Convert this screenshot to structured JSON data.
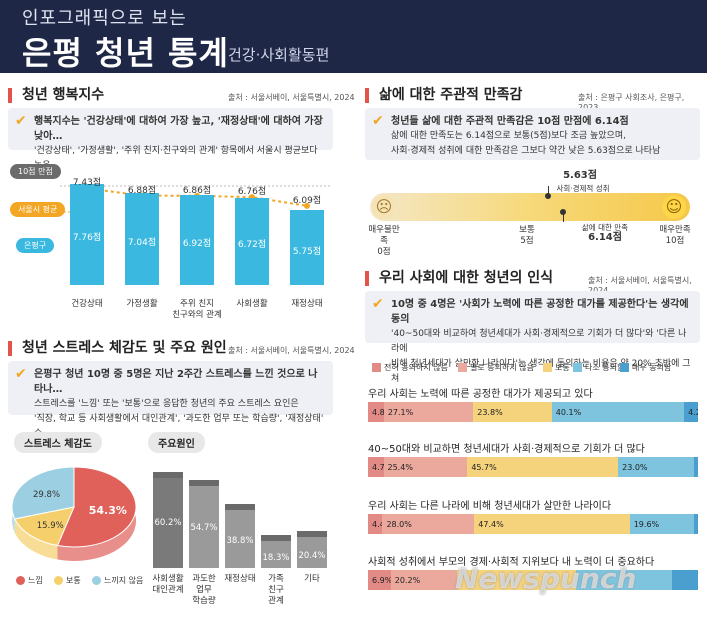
{
  "header": {
    "sup": "인포그래픽으로 보는",
    "main": "은평 청년 통계",
    "sub": "건강·사회활동편"
  },
  "happiness": {
    "title": "청년 행복지수",
    "source": "출처 : 서울서베이, 서울특별시, 2024",
    "note_bold": "행복지수는 '건강상태'에 대하여 가장 높고, '재정상태'에 대하여 가장 낮아…",
    "note_text": "'건강상태', '가정생활', '주위 친지·친구와의 관계' 항목에서 서울시 평균보다 높음",
    "scale_tag": "10점 만점",
    "avg_tag": "서울시 평균",
    "eunpyeong_tag": "은평구"
  },
  "satisfaction": {
    "title": "삶에 대한 주관적 만족감",
    "source": "출처 : 은평구 사회조사, 은평구, 2023",
    "note_bold": "청년들 삶에 대한 주관적 만족감은 10점 만점에 6.14점",
    "note_text1": "삶에 대한 만족도는 6.14점으로 보통(5점)보다 조금 높았으며,",
    "note_text2": "사회·경제적 성취에 대한 만족감은 그보다 약간 낮은 5.63점으로 나타남",
    "top_val": "5.63점",
    "top_lab": "사회·경제적 성취",
    "bottom_lab": "삶에 대한 만족",
    "bottom_val": "6.14점",
    "left_lab": "매우불만족",
    "left_val": "0점",
    "mid_lab": "보통",
    "mid_val": "5점",
    "right_lab": "매우만족",
    "right_val": "10점"
  },
  "stress": {
    "title": "청년 스트레스 체감도 및 주요 원인",
    "source": "출처 : 서울서베이, 서울특별시, 2024",
    "note_bold": "은평구 청년 10명 중 5명은 지난 2주간 스트레스를 느낀 것으로 나타나…",
    "note_text1": "스트레스를 '느낌' 또는 '보통'으로 응답한 청년의 주요 스트레스 요인은",
    "note_text2": "'직장, 학교 등 사회생활에서 대인관계', '과도한 업무 또는 학습량', '재정상태' 순",
    "pie_label": "스트레스 체감도",
    "cause_label": "주요원인",
    "pie_legend": [
      "느낌",
      "보통",
      "느끼지 않음"
    ]
  },
  "perception": {
    "title": "우리 사회에 대한 청년의 인식",
    "source": "출처 : 서울서베이, 서울특별시, 2024",
    "note_bold": "10명 중 4명은 '사회가 노력에 따른 공정한 대가를 제공한다'는 생각에 동의",
    "note_text1": "'40~50대와 비교하여 청년세대가 사회·경제적으로 기회가 더 많다'와 '다른 나라에",
    "note_text2": "비해 청년세대가 살만한 나라이다'는 생각에 동의하는 비율은 약 20% 초반에 그쳐",
    "legend": [
      "전혀 동의하지 않음",
      "별로 동의하지 않음",
      "보통",
      "다소 동의함",
      "매우 동의함"
    ]
  },
  "watermark": "Newspunch",
  "chart_data": [
    {
      "type": "bar",
      "title": "청년 행복지수",
      "categories": [
        "건강상태",
        "가정생활",
        "주위 친지·친구와의 관계",
        "사회생활",
        "재정상태"
      ],
      "category_labels": [
        [
          "건강상태"
        ],
        [
          "가정생활"
        ],
        [
          "주위 친지",
          "친구와의 관계"
        ],
        [
          "사회생활"
        ],
        [
          "재정상태"
        ]
      ],
      "series": [
        {
          "name": "은평구",
          "values": [
            7.76,
            7.04,
            6.92,
            6.72,
            5.75
          ],
          "labels": [
            "7.76점",
            "7.04점",
            "6.92점",
            "6.72점",
            "5.75점"
          ]
        },
        {
          "name": "서울시 평균",
          "values": [
            7.43,
            6.88,
            6.86,
            6.76,
            6.09
          ],
          "labels": [
            "7.43점",
            "6.88점",
            "6.86점",
            "6.76점",
            "6.09점"
          ]
        }
      ],
      "ylim": [
        0,
        10
      ],
      "colors": {
        "bar": "#3ab8e0",
        "avg": "#f2a623"
      }
    },
    {
      "type": "scale",
      "title": "삶에 대한 주관적 만족감",
      "range": [
        0,
        10
      ],
      "points": [
        {
          "name": "사회·경제적 성취",
          "value": 5.63
        },
        {
          "name": "삶에 대한 만족",
          "value": 6.14
        }
      ]
    },
    {
      "type": "pie",
      "title": "스트레스 체감도",
      "categories": [
        "느낌",
        "보통",
        "느끼지 않음"
      ],
      "values": [
        54.3,
        15.9,
        29.8
      ],
      "labels": [
        "54.3%",
        "15.9%",
        "29.8%"
      ],
      "colors": [
        "#e0605a",
        "#f5cf6b",
        "#9ccfe2"
      ]
    },
    {
      "type": "bar",
      "title": "주요원인",
      "categories": [
        "사회생활 대인관계",
        "과도한 업무 학습량",
        "재정상태",
        "가족 친구 관계",
        "기타"
      ],
      "category_labels": [
        [
          "사회생활",
          "대인관계"
        ],
        [
          "과도한",
          "업무",
          "학습량"
        ],
        [
          "재정상태"
        ],
        [
          "가족",
          "친구",
          "관계"
        ],
        [
          "기타"
        ]
      ],
      "values": [
        60.2,
        54.7,
        38.8,
        18.3,
        20.4
      ],
      "labels": [
        "60.2%",
        "54.7%",
        "38.8%",
        "18.3%",
        "20.4%"
      ],
      "ylim": [
        0,
        70
      ]
    },
    {
      "type": "bar",
      "orientation": "horizontal-stacked",
      "title": "우리 사회에 대한 청년의 인식",
      "categories": [
        "우리 사회는 노력에 따른 공정한 대가가 제공되고 있다",
        "40~50대와 비교하면 청년세대가 사회·경제적으로 기회가 더 많다",
        "우리 사회는 다른 나라에 비해 청년세대가 살만한 나라이다",
        "사회적 성취에서 부모의 경제·사회적 지위보다 내 노력이 더 중요하다"
      ],
      "series": [
        {
          "name": "전혀 동의하지 않음",
          "values": [
            4.8,
            4.7,
            4.4,
            6.9
          ],
          "labels": [
            "4.8%",
            "4.7%",
            "4.4%",
            "6.9%"
          ]
        },
        {
          "name": "별로 동의하지 않음",
          "values": [
            27.1,
            25.4,
            28.0,
            20.2
          ],
          "labels": [
            "27.1%",
            "25.4%",
            "28.0%",
            "20.2%"
          ]
        },
        {
          "name": "보통",
          "values": [
            23.8,
            45.7,
            47.4,
            36.0
          ],
          "labels": [
            "23.8%",
            "45.7%",
            "47.4%",
            ""
          ]
        },
        {
          "name": "다소 동의함",
          "values": [
            40.1,
            23.0,
            19.6,
            29.0
          ],
          "labels": [
            "40.1%",
            "23.0%",
            "19.6%",
            ""
          ]
        },
        {
          "name": "매우 동의함",
          "values": [
            4.2,
            1.1,
            0.6,
            7.9
          ],
          "labels": [
            "4.2%",
            "1.1%",
            "0.6%",
            ""
          ]
        }
      ],
      "colors": [
        "#e28a85",
        "#eba89d",
        "#f5d27c",
        "#7ec4df",
        "#4a9fcf"
      ]
    }
  ]
}
